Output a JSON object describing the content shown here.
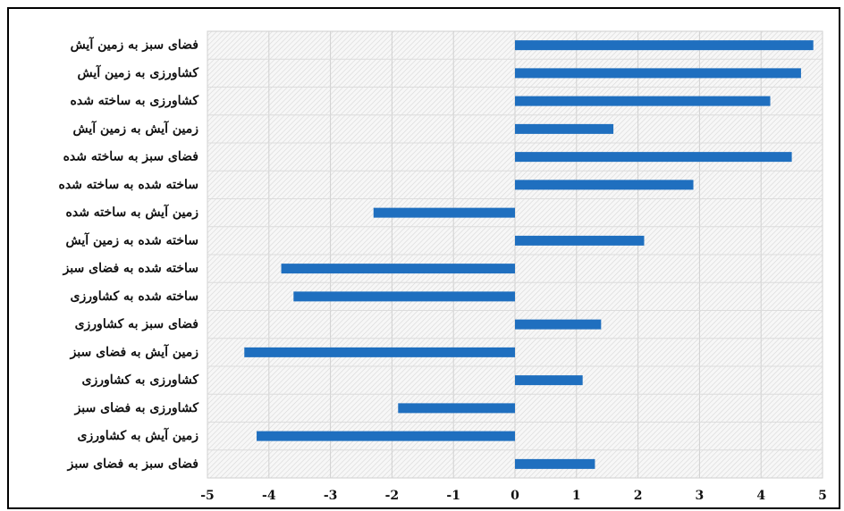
{
  "chart_data": {
    "type": "bar",
    "orientation": "horizontal",
    "categories": [
      "فضای سبز به زمین آیش",
      "کشاورزی به زمین آیش",
      "کشاورزی به ساخته شده",
      "زمین آیش به زمین آیش",
      "فضای سبز به ساخته شده",
      "ساخته شده به ساخته شده",
      "زمین آیش به ساخته شده",
      "ساخته شده به زمین آیش",
      "ساخته شده به فضای سبز",
      "ساخته شده به کشاورزی",
      "فضای سبز به کشاورزی",
      "زمین آیش به فضای سبز",
      "کشاورزی به کشاورزی",
      "کشاورزی به فضای سبز",
      "زمین آیش به کشاورزی",
      "فضای سبز به فضای سبز"
    ],
    "values": [
      4.85,
      4.65,
      4.15,
      1.6,
      4.5,
      2.9,
      -2.3,
      2.1,
      -3.8,
      -3.6,
      1.4,
      -4.4,
      1.1,
      -1.9,
      -4.2,
      1.3
    ],
    "color": "#1f6fbf",
    "xlim": [
      -5,
      5
    ],
    "xticks": [
      -5,
      -4,
      -3,
      -2,
      -1,
      0,
      1,
      2,
      3,
      4,
      5
    ],
    "grid": true
  }
}
